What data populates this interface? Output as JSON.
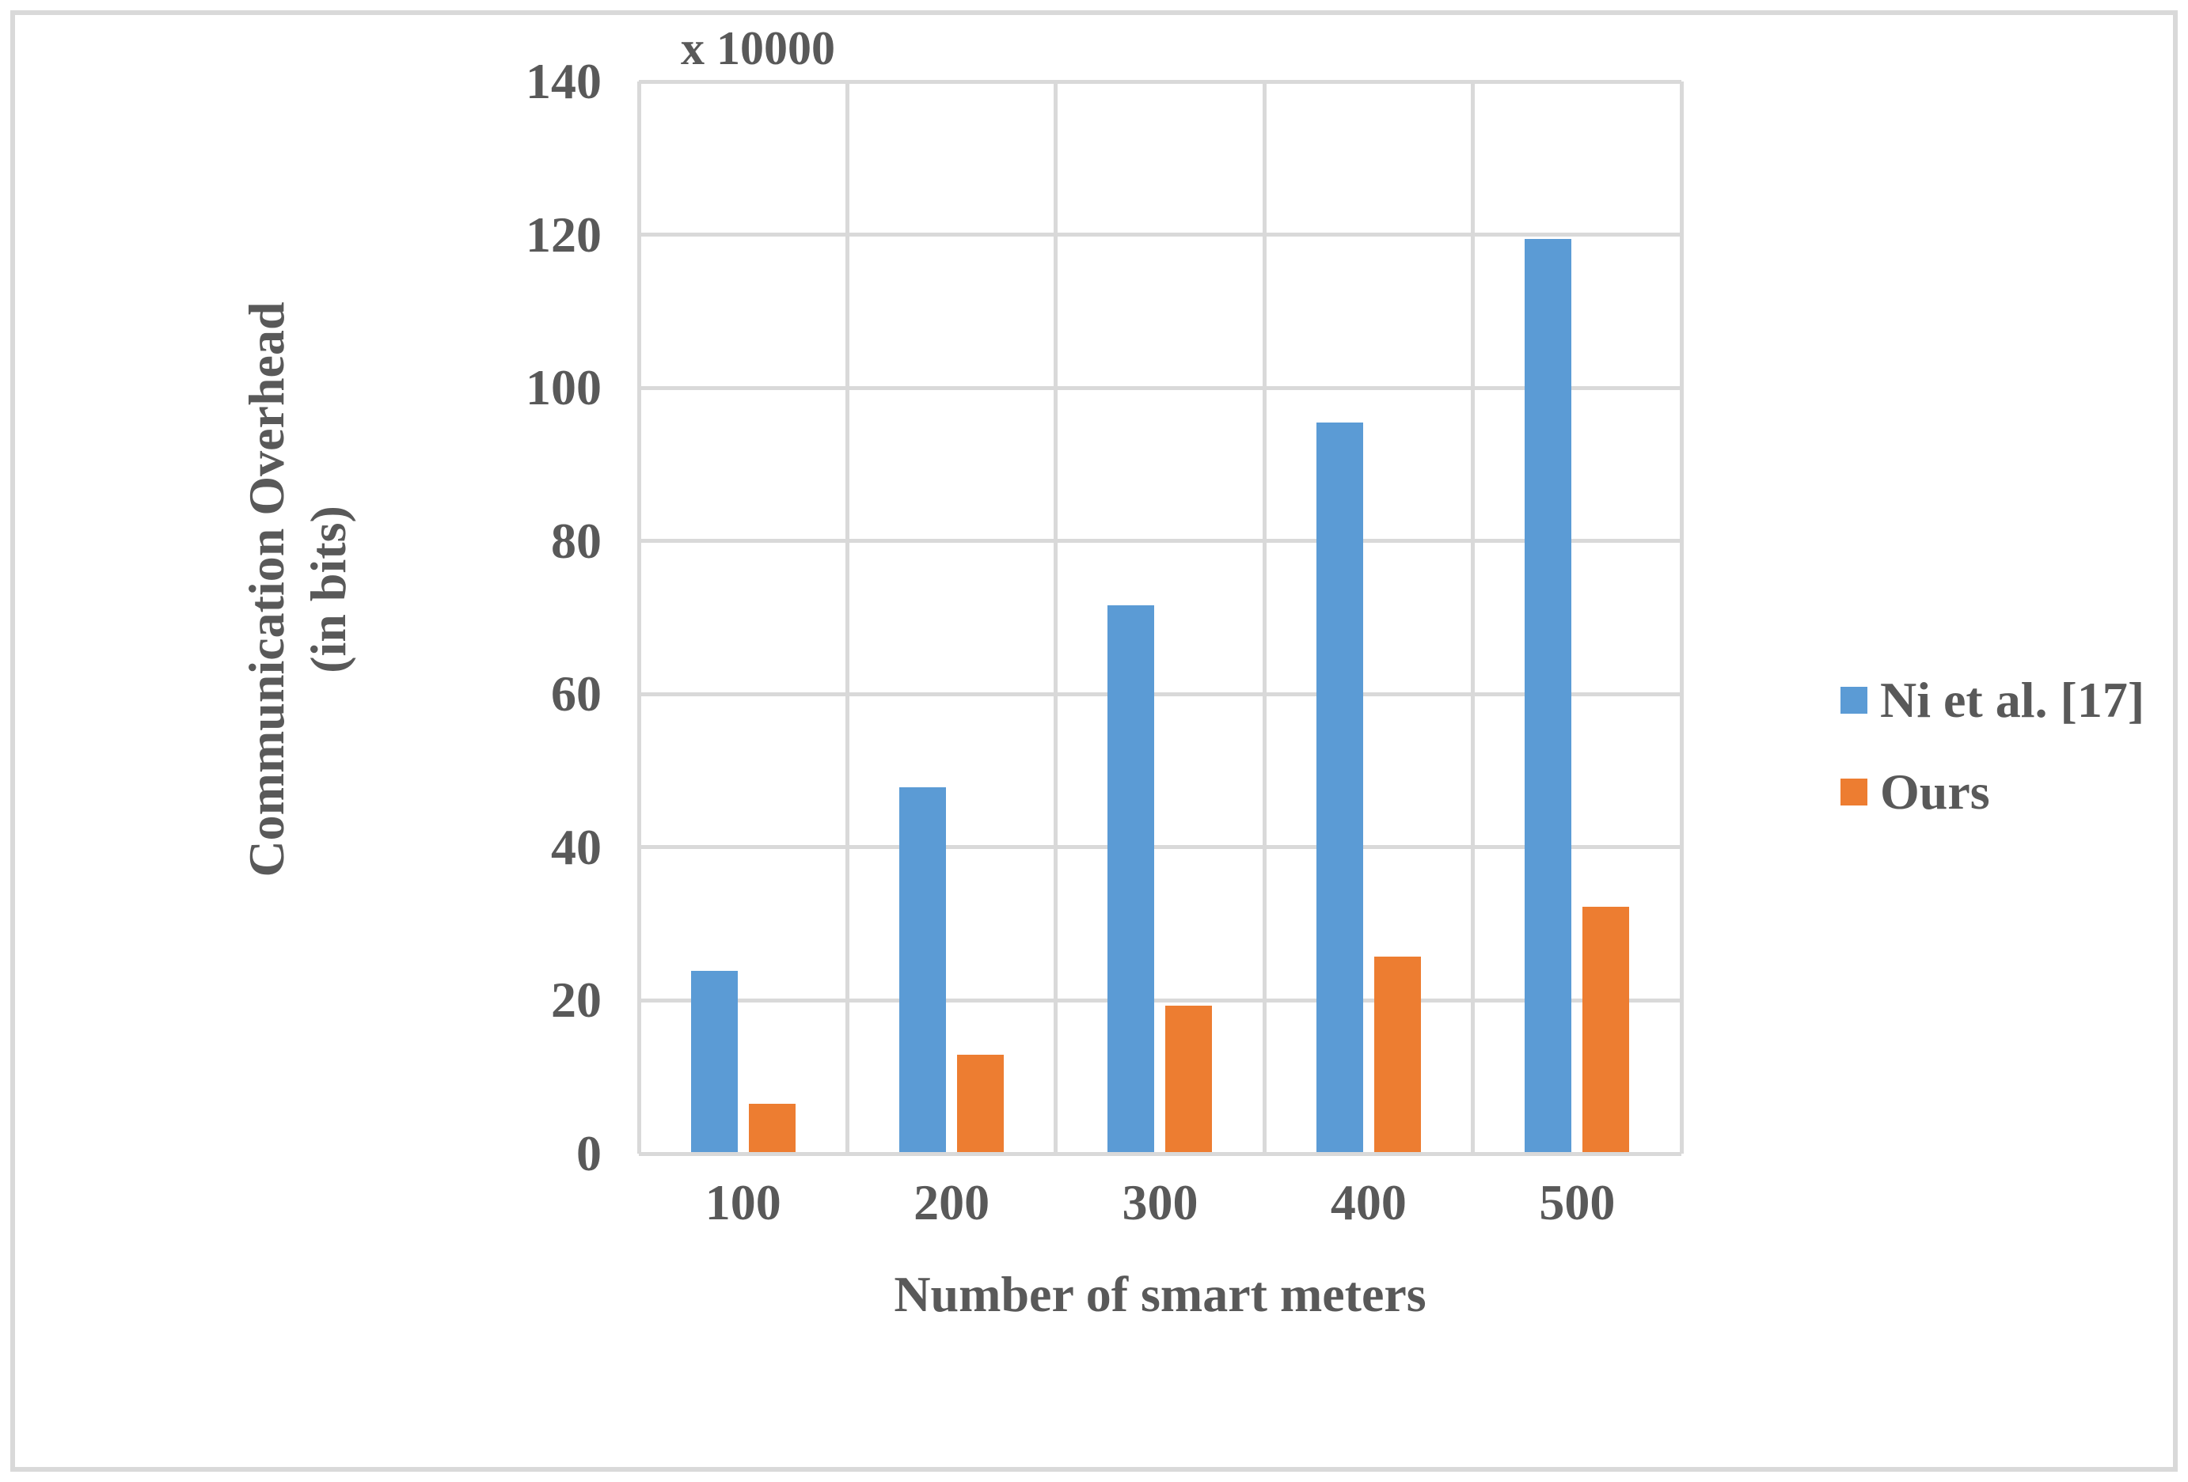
{
  "figure": {
    "background": "#FFFFFF",
    "border_color": "#D9D9D9"
  },
  "chart_data": {
    "type": "bar",
    "title": "",
    "xlabel": "Number of smart meters",
    "ylabel_lines": [
      "Communication Overhead",
      "(in bits)"
    ],
    "ylabel": "Communication Overhead (in bits)",
    "axis_multiplier": "x 10000",
    "categories": [
      "100",
      "200",
      "300",
      "400",
      "500"
    ],
    "series": [
      {
        "name": "Ni et al. [17]",
        "color": "#5B9BD5",
        "values": [
          23.9,
          47.8,
          71.6,
          95.5,
          119.4
        ]
      },
      {
        "name": "Ours",
        "color": "#ED7D31",
        "values": [
          6.5,
          12.9,
          19.3,
          25.7,
          32.2
        ]
      }
    ],
    "y_ticks": [
      0,
      20,
      40,
      60,
      80,
      100,
      120,
      140
    ],
    "ylim": [
      0,
      140
    ],
    "grid": true,
    "gridline_color": "#D9D9D9",
    "text_color": "#595959",
    "legend_position": "right"
  }
}
